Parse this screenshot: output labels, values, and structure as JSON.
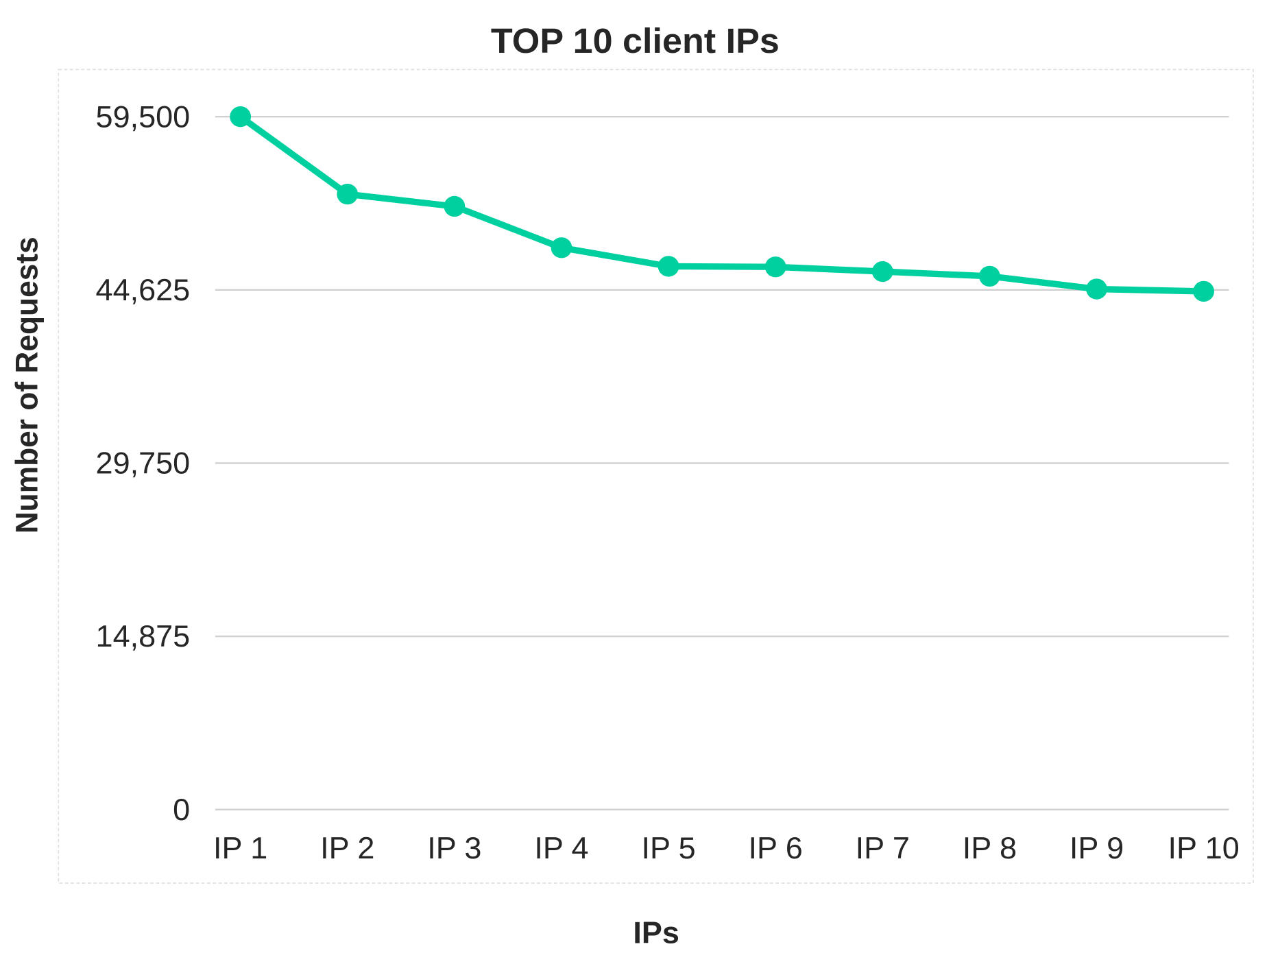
{
  "chart_data": {
    "type": "line",
    "title": "TOP 10 client IPs",
    "xlabel": "IPs",
    "ylabel": "Number of Requests",
    "categories": [
      "IP 1",
      "IP 2",
      "IP 3",
      "IP 4",
      "IP 5",
      "IP 6",
      "IP 7",
      "IP 8",
      "IP 9",
      "IP 10"
    ],
    "series": [
      {
        "values": [
          59500,
          52850,
          51800,
          48250,
          46650,
          46600,
          46200,
          45800,
          44700,
          44500
        ],
        "color": "#00d0a0"
      }
    ],
    "ylim": [
      0,
      59500
    ],
    "yticks": [
      0,
      14875,
      29750,
      44625,
      59500
    ],
    "ytick_labels": [
      "0",
      "14,875",
      "29,750",
      "44,625",
      "59,500"
    ],
    "grid": true,
    "legend": "none"
  }
}
